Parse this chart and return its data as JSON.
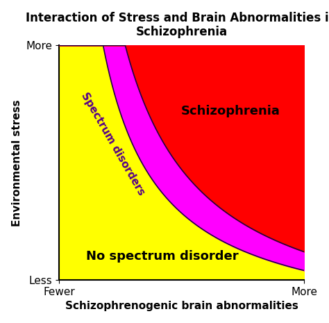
{
  "title": "Interaction of Stress and Brain Abnormalities in\nSchizophrenia",
  "xlabel": "Schizophrenogenic brain abnormalities",
  "ylabel": "Environmental stress",
  "x_tick_labels": [
    "Fewer",
    "More"
  ],
  "y_tick_labels": [
    "Less",
    "More"
  ],
  "color_yellow": "#FFFF00",
  "color_magenta": "#FF00FF",
  "color_red": "#FF0000",
  "label_no_spectrum": "No spectrum disorder",
  "label_spectrum": "Spectrum disorders",
  "label_schizophrenia": "Schizophrenia",
  "title_fontsize": 12,
  "label_fontsize": 11,
  "annotation_fontsize": 13,
  "spectrum_fontsize": 11,
  "figsize": [
    4.74,
    4.65
  ],
  "dpi": 100
}
